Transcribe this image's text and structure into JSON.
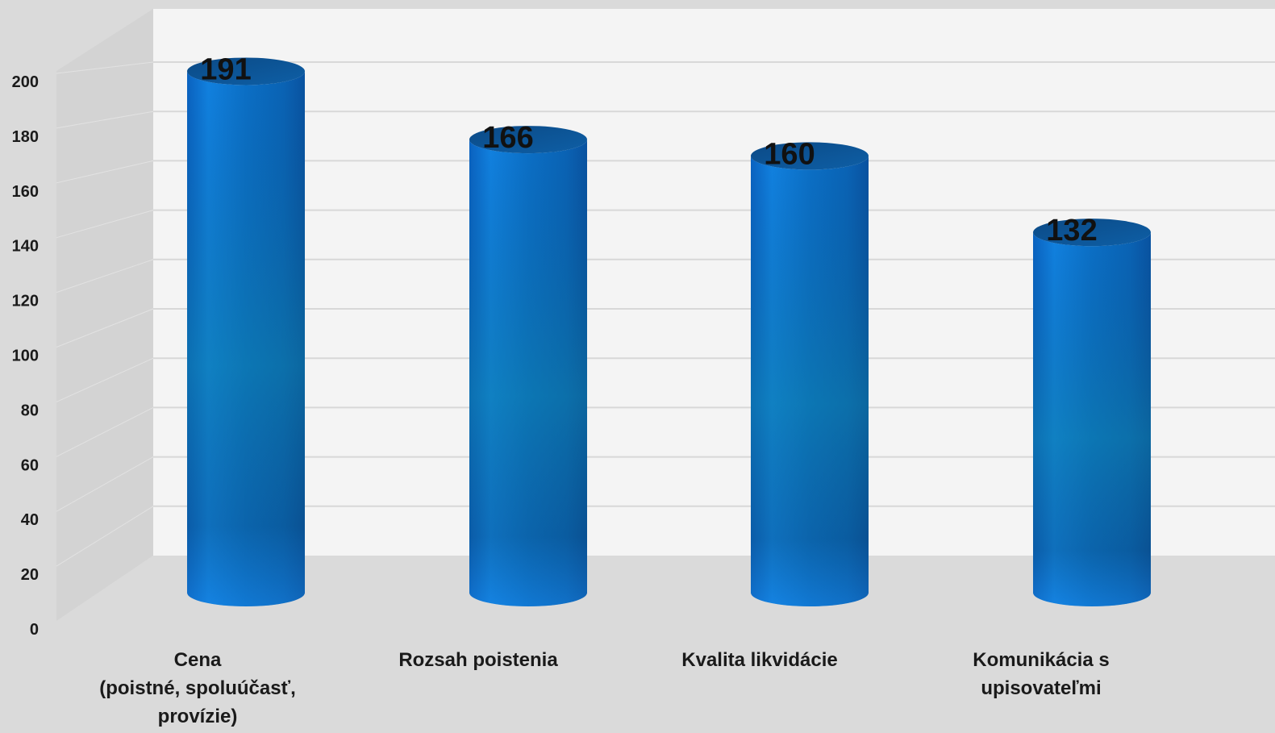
{
  "chart_data": {
    "type": "bar",
    "style": "3d-cylinder",
    "categories": [
      [
        "Cena",
        "(poistné, spoluúčasť,",
        "provízie)"
      ],
      [
        "Rozsah poistenia"
      ],
      [
        "Kvalita likvidácie"
      ],
      [
        "Komunikácia s",
        "upisovateľmi"
      ]
    ],
    "values": [
      191,
      166,
      160,
      132
    ],
    "data_labels": [
      "191",
      "166",
      "160",
      "132"
    ],
    "ylim": [
      0,
      200
    ],
    "yticks": [
      0,
      20,
      40,
      60,
      80,
      100,
      120,
      140,
      160,
      180,
      200
    ],
    "grid": true,
    "colors": {
      "bar_light": "#1f84e8",
      "bar_mid": "#0a6fc8",
      "bar_dark": "#0b4f7a",
      "bar_teal": "#0e7f9e",
      "top_dark": "#0c4f8c",
      "wall": "#f4f4f4",
      "floor": "#dadada",
      "grid": "#d6d6d6"
    }
  }
}
